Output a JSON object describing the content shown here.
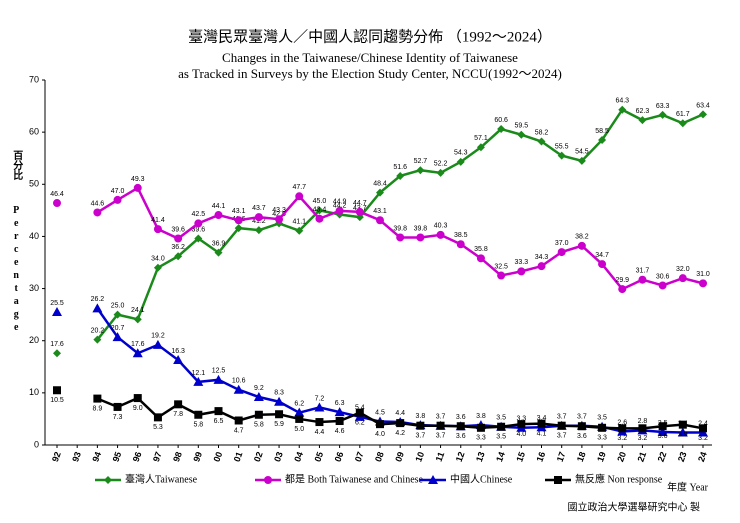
{
  "chart_data": {
    "type": "line",
    "title": "臺灣民眾臺灣人／中國人認同趨勢分佈 （1992～2024）",
    "subtitle": [
      "Changes in the Taiwanese/Chinese Identity of Taiwanese",
      "as Tracked in Surveys by the Election Study Center, NCCU(1992～2024)"
    ],
    "y_label": "百分比",
    "y_label_en": "Percentage",
    "x_label": "年度 Year",
    "source": "國立政治大學選舉研究中心 製",
    "categories": [
      "92",
      "93",
      "94",
      "95",
      "96",
      "97",
      "98",
      "99",
      "00",
      "01",
      "02",
      "03",
      "04",
      "05",
      "06",
      "07",
      "08",
      "09",
      "10",
      "11",
      "12",
      "13",
      "14",
      "15",
      "16",
      "17",
      "18",
      "19",
      "20",
      "21",
      "22",
      "23",
      "24"
    ],
    "ylim": [
      0,
      70
    ],
    "yticks": [
      0,
      10,
      20,
      30,
      40,
      50,
      60,
      70
    ],
    "series": [
      {
        "name": "臺灣人Taiwanese",
        "color": "#1a8a1a",
        "marker": "diamond",
        "values": [
          17.6,
          null,
          20.2,
          25.0,
          24.1,
          34.0,
          36.2,
          39.6,
          36.9,
          41.6,
          41.2,
          42.5,
          41.1,
          45.0,
          44.2,
          43.7,
          48.4,
          51.6,
          52.7,
          52.2,
          54.3,
          57.1,
          60.6,
          59.5,
          58.2,
          55.5,
          54.5,
          58.5,
          64.3,
          62.3,
          63.3,
          61.7,
          63.4
        ],
        "value_labels": [
          "17.6",
          null,
          "20.2",
          "25.0",
          "24.1",
          "34.0",
          "36.2",
          "39.6",
          "36.9",
          "41.6",
          "41.2",
          "42.5",
          "41.1",
          "45.0",
          "44.2",
          "43.7",
          "48.4",
          "51.6",
          "52.7",
          "52.2",
          "54.3",
          "57.1",
          "60.6",
          "59.5",
          "58.2",
          "55.5",
          "54.5",
          "58.5",
          "64.3",
          "62.3",
          "63.3",
          "61.7",
          "63.4"
        ]
      },
      {
        "name": "都是 Both Taiwanese and Chinese",
        "color": "#cc00cc",
        "marker": "circle",
        "values": [
          46.4,
          null,
          44.6,
          47.0,
          49.3,
          41.4,
          39.6,
          42.5,
          44.1,
          43.1,
          43.7,
          43.3,
          47.7,
          43.4,
          44.9,
          44.7,
          43.1,
          39.8,
          39.8,
          40.3,
          38.5,
          35.8,
          32.5,
          33.3,
          34.3,
          37.0,
          38.2,
          34.7,
          29.9,
          31.7,
          30.6,
          32.0,
          31.0
        ],
        "value_labels": [
          "46.4",
          null,
          "44.6",
          "47.0",
          "49.3",
          "41.4",
          "39.6",
          "42.5",
          "44.1",
          "43.1",
          "43.7",
          "43.3",
          "47.7",
          "43.4",
          "44.9",
          "44.7",
          "43.1",
          "39.8",
          "39.8",
          "40.3",
          "38.5",
          "35.8",
          "32.5",
          "33.3",
          "34.3",
          "37.0",
          "38.2",
          "34.7",
          "29.9",
          "31.7",
          "30.6",
          "32.0",
          "31.0"
        ]
      },
      {
        "name": "中國人Chinese",
        "color": "#0000cc",
        "marker": "triangle",
        "values": [
          25.5,
          null,
          26.2,
          20.7,
          17.6,
          19.2,
          16.3,
          12.1,
          12.5,
          10.6,
          9.2,
          8.3,
          6.2,
          7.2,
          6.3,
          5.4,
          4.5,
          4.4,
          3.8,
          3.7,
          3.6,
          3.8,
          3.5,
          3.3,
          3.4,
          3.7,
          3.7,
          3.5,
          2.6,
          2.8,
          2.5,
          2.4,
          2.4
        ],
        "value_labels": [
          "25.5",
          null,
          "26.2",
          "20.7",
          "17.6",
          "19.2",
          "16.3",
          "12.1",
          "12.5",
          "10.6",
          "9.2",
          "8.3",
          "6.2",
          "7.2",
          "6.3",
          "5.4",
          "4.5",
          "4.4",
          "3.8",
          "3.7",
          "3.6",
          "3.8",
          "3.5",
          "3.3",
          "3.4",
          "3.7",
          "3.7",
          "3.5",
          "2.6",
          "2.8",
          "2.5",
          "2.4",
          "2.4"
        ]
      },
      {
        "name": "無反應 Non response",
        "color": "#000000",
        "marker": "square",
        "values": [
          10.5,
          null,
          8.9,
          7.3,
          9.0,
          5.3,
          7.8,
          5.8,
          6.5,
          4.7,
          5.8,
          5.9,
          5.0,
          4.4,
          4.6,
          6.2,
          4.0,
          4.2,
          3.7,
          3.7,
          3.6,
          3.3,
          3.5,
          4.0,
          4.1,
          3.7,
          3.6,
          3.3,
          3.2,
          3.2,
          3.6,
          3.9,
          3.2
        ],
        "value_labels": [
          "10.5",
          null,
          "8.9",
          "7.3",
          "9.0",
          "5.3",
          "7.8",
          "5.8",
          "6.5",
          "4.7",
          "5.8",
          "5.9",
          "5.0",
          "4.4",
          "4.6",
          "6.2",
          "4.0",
          "4.2",
          "3.7",
          "3.7",
          "3.6",
          "3.3",
          "3.5",
          "4.0",
          "4.1",
          "3.7",
          "3.6",
          "3.3",
          "3.2",
          "3.2",
          "3.6",
          "3.9",
          "3.2"
        ]
      }
    ]
  }
}
